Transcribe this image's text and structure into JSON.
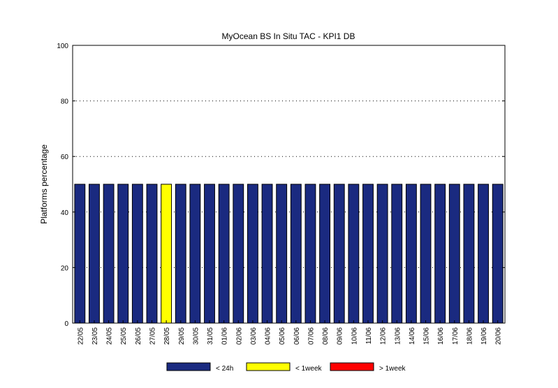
{
  "chart_data": {
    "type": "bar",
    "title": "MyOcean  BS In Situ TAC - KPI1  DB",
    "xlabel": "",
    "ylabel": "Platforms percentage",
    "ylim": [
      0,
      100
    ],
    "yticks": [
      "0",
      "20",
      "40",
      "60",
      "80",
      "100"
    ],
    "grid": "horizontal dotted",
    "legend_position": "bottom",
    "categories": [
      "22/05",
      "23/05",
      "24/05",
      "25/05",
      "26/05",
      "27/05",
      "28/05",
      "29/05",
      "30/05",
      "31/05",
      "01/06",
      "02/06",
      "03/06",
      "04/06",
      "05/06",
      "06/06",
      "07/06",
      "08/06",
      "09/06",
      "10/06",
      "11/06",
      "12/06",
      "13/06",
      "14/06",
      "15/06",
      "16/06",
      "17/06",
      "18/06",
      "19/06",
      "20/06"
    ],
    "series": [
      {
        "name": "< 24h",
        "color": "#1a2a80",
        "values": [
          50,
          50,
          50,
          50,
          50,
          50,
          0,
          50,
          50,
          50,
          50,
          50,
          50,
          50,
          50,
          50,
          50,
          50,
          50,
          50,
          50,
          50,
          50,
          50,
          50,
          50,
          50,
          50,
          50,
          50
        ]
      },
      {
        "name": "< 1week",
        "color": "#ffff00",
        "values": [
          0,
          0,
          0,
          0,
          0,
          0,
          50,
          0,
          0,
          0,
          0,
          0,
          0,
          0,
          0,
          0,
          0,
          0,
          0,
          0,
          0,
          0,
          0,
          0,
          0,
          0,
          0,
          0,
          0,
          0
        ]
      },
      {
        "name": "> 1week",
        "color": "#ff0000",
        "values": [
          0,
          0,
          0,
          0,
          0,
          0,
          0,
          0,
          0,
          0,
          0,
          0,
          0,
          0,
          0,
          0,
          0,
          0,
          0,
          0,
          0,
          0,
          0,
          0,
          0,
          0,
          0,
          0,
          0,
          0
        ]
      }
    ]
  }
}
